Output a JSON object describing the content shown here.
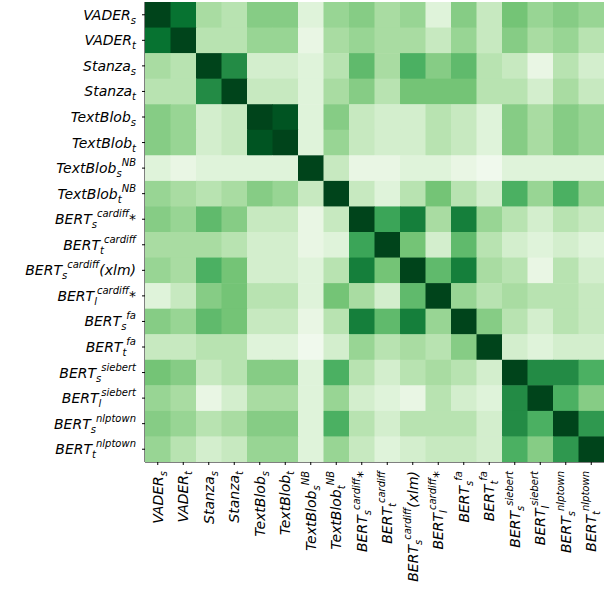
{
  "chart_data": {
    "type": "heatmap",
    "labels": [
      {
        "main": "VADER",
        "sub": "s"
      },
      {
        "main": "VADER",
        "sub": "t"
      },
      {
        "main": "Stanza",
        "sub": "s"
      },
      {
        "main": "Stanza",
        "sub": "t"
      },
      {
        "main": "TextBlob",
        "sub": "s"
      },
      {
        "main": "TextBlob",
        "sub": "t"
      },
      {
        "main": "TextBlob",
        "sub": "s",
        "sup": "NB"
      },
      {
        "main": "TextBlob",
        "sub": "t",
        "sup": "NB"
      },
      {
        "main": "BERT",
        "sub": "s",
        "sup": "cardiff",
        "suffix": "*"
      },
      {
        "main": "BERT",
        "sub": "t",
        "sup": "cardiff"
      },
      {
        "main": "BERT",
        "sub": "s",
        "sup": "cardiff",
        "suffix": "(xlm)"
      },
      {
        "main": "BERT",
        "sub": "l",
        "sup": "cardiff",
        "suffix": "*"
      },
      {
        "main": "BERT",
        "sub": "s",
        "sup": "fa"
      },
      {
        "main": "BERT",
        "sub": "t",
        "sup": "fa"
      },
      {
        "main": "BERT",
        "sub": "s",
        "sup": "siebert"
      },
      {
        "main": "BERT",
        "sub": "l",
        "sup": "siebert"
      },
      {
        "main": "BERT",
        "sub": "s",
        "sup": "nlptown"
      },
      {
        "main": "BERT",
        "sub": "t",
        "sup": "nlptown"
      }
    ],
    "cells": [
      [
        1,
        0.85,
        0.35,
        0.3,
        0.45,
        0.45,
        0.15,
        0.4,
        0.45,
        0.35,
        0.4,
        0.15,
        0.45,
        0.25,
        0.5,
        0.4,
        0.45,
        0.4
      ],
      [
        0.85,
        1,
        0.3,
        0.3,
        0.4,
        0.4,
        0.1,
        0.35,
        0.4,
        0.35,
        0.35,
        0.25,
        0.4,
        0.25,
        0.45,
        0.35,
        0.4,
        0.3
      ],
      [
        0.35,
        0.3,
        1,
        0.75,
        0.2,
        0.2,
        0.15,
        0.3,
        0.55,
        0.35,
        0.6,
        0.45,
        0.55,
        0.3,
        0.25,
        0.1,
        0.3,
        0.2
      ],
      [
        0.3,
        0.3,
        0.75,
        1,
        0.25,
        0.25,
        0.15,
        0.35,
        0.45,
        0.3,
        0.5,
        0.5,
        0.5,
        0.3,
        0.3,
        0.2,
        0.35,
        0.25
      ],
      [
        0.45,
        0.4,
        0.2,
        0.25,
        1,
        0.95,
        0.15,
        0.45,
        0.25,
        0.2,
        0.2,
        0.3,
        0.25,
        0.15,
        0.45,
        0.35,
        0.45,
        0.4
      ],
      [
        0.45,
        0.4,
        0.2,
        0.25,
        0.95,
        1,
        0.15,
        0.4,
        0.25,
        0.2,
        0.2,
        0.3,
        0.25,
        0.15,
        0.45,
        0.35,
        0.45,
        0.4
      ],
      [
        0.15,
        0.1,
        0.15,
        0.15,
        0.15,
        0.15,
        1,
        0.25,
        0.1,
        0.1,
        0.15,
        0.15,
        0.1,
        0.05,
        0.15,
        0.15,
        0.15,
        0.15
      ],
      [
        0.4,
        0.35,
        0.3,
        0.35,
        0.45,
        0.4,
        0.25,
        1,
        0.25,
        0.15,
        0.3,
        0.5,
        0.3,
        0.2,
        0.6,
        0.4,
        0.6,
        0.4
      ],
      [
        0.45,
        0.4,
        0.55,
        0.45,
        0.25,
        0.25,
        0.1,
        0.25,
        1,
        0.65,
        0.8,
        0.35,
        0.8,
        0.4,
        0.3,
        0.2,
        0.3,
        0.25
      ],
      [
        0.35,
        0.35,
        0.35,
        0.3,
        0.2,
        0.2,
        0.1,
        0.15,
        0.65,
        1,
        0.5,
        0.2,
        0.55,
        0.3,
        0.2,
        0.15,
        0.2,
        0.15
      ],
      [
        0.4,
        0.35,
        0.6,
        0.5,
        0.2,
        0.2,
        0.15,
        0.3,
        0.8,
        0.5,
        1,
        0.55,
        0.8,
        0.35,
        0.3,
        0.1,
        0.3,
        0.2
      ],
      [
        0.15,
        0.25,
        0.45,
        0.5,
        0.3,
        0.3,
        0.15,
        0.5,
        0.35,
        0.2,
        0.55,
        1,
        0.4,
        0.3,
        0.35,
        0.3,
        0.3,
        0.25
      ],
      [
        0.45,
        0.4,
        0.55,
        0.5,
        0.25,
        0.25,
        0.1,
        0.3,
        0.8,
        0.55,
        0.8,
        0.4,
        1,
        0.45,
        0.3,
        0.2,
        0.3,
        0.25
      ],
      [
        0.25,
        0.25,
        0.3,
        0.3,
        0.15,
        0.15,
        0.05,
        0.2,
        0.4,
        0.3,
        0.35,
        0.3,
        0.45,
        1,
        0.2,
        0.15,
        0.2,
        0.2
      ],
      [
        0.5,
        0.45,
        0.25,
        0.3,
        0.45,
        0.45,
        0.15,
        0.6,
        0.3,
        0.2,
        0.3,
        0.35,
        0.3,
        0.2,
        1,
        0.75,
        0.75,
        0.6
      ],
      [
        0.4,
        0.35,
        0.1,
        0.2,
        0.35,
        0.35,
        0.15,
        0.4,
        0.2,
        0.15,
        0.1,
        0.3,
        0.2,
        0.15,
        0.75,
        1,
        0.6,
        0.45
      ],
      [
        0.45,
        0.4,
        0.3,
        0.35,
        0.45,
        0.45,
        0.15,
        0.6,
        0.3,
        0.2,
        0.3,
        0.3,
        0.3,
        0.2,
        0.75,
        0.6,
        1,
        0.7
      ],
      [
        0.4,
        0.3,
        0.2,
        0.25,
        0.4,
        0.4,
        0.15,
        0.4,
        0.25,
        0.15,
        0.2,
        0.25,
        0.25,
        0.2,
        0.6,
        0.45,
        0.7,
        1
      ]
    ],
    "color_range": [
      0,
      1
    ]
  }
}
